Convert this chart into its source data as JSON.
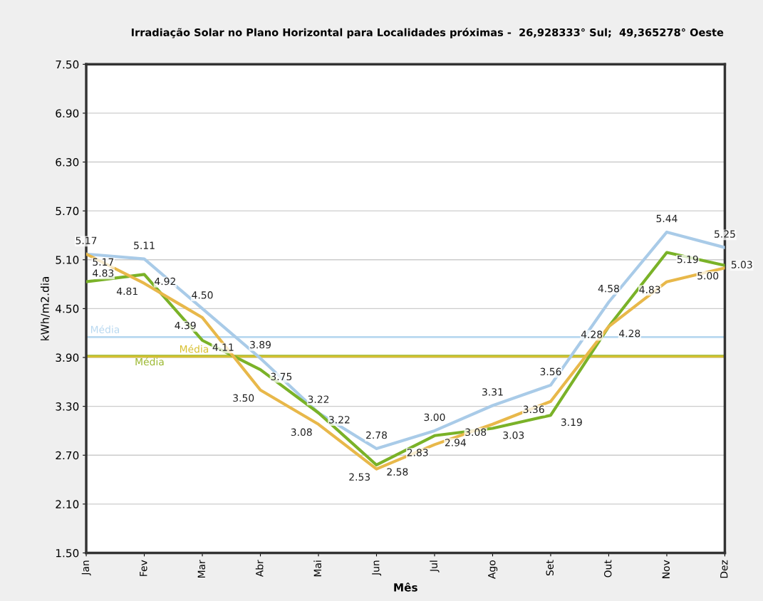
{
  "chart_data": {
    "type": "line",
    "title": "Irradiação Solar no Plano Horizontal para Localidades próximas -  26,928333° Sul;  49,365278° Oeste",
    "xlabel": "Mês",
    "ylabel": "kWh/m2.dia",
    "categories": [
      "Jan",
      "Fev",
      "Mar",
      "Abr",
      "Mai",
      "Jun",
      "Jul",
      "Ago",
      "Set",
      "Out",
      "Nov",
      "Dez"
    ],
    "series": [
      {
        "color": "#a9cbe8",
        "values": [
          5.17,
          5.11,
          4.5,
          3.89,
          3.22,
          2.78,
          3.0,
          3.31,
          3.56,
          4.58,
          5.44,
          5.25
        ],
        "value_labels": [
          "5.17",
          "5.11",
          "4.50",
          "3.89",
          "3.22",
          "2.78",
          "3.00",
          "3.31",
          "3.56",
          "4.58",
          "5.44",
          "5.25"
        ]
      },
      {
        "color": "#7ab228",
        "values": [
          4.83,
          4.92,
          4.11,
          3.75,
          3.22,
          2.58,
          2.94,
          3.03,
          3.19,
          4.28,
          5.19,
          5.03
        ],
        "value_labels": [
          "4.83",
          "4.92",
          "4.11",
          "3.75",
          "3.22",
          "2.58",
          "2.94",
          "3.03",
          "3.19",
          "4.28",
          "5.19",
          "5.03"
        ]
      },
      {
        "color": "#e8b84a",
        "values": [
          5.17,
          4.81,
          4.39,
          3.5,
          3.08,
          2.53,
          2.83,
          3.08,
          3.36,
          4.28,
          4.83,
          5.0
        ],
        "value_labels": [
          "5.17",
          "4.81",
          "4.39",
          "3.50",
          "3.08",
          "2.53",
          "2.83",
          "3.08",
          "3.36",
          "4.28",
          "4.83",
          "5.00"
        ]
      }
    ],
    "ylim": [
      1.5,
      7.5
    ],
    "yticks": [
      {
        "value": 1.5,
        "label": "1.50"
      },
      {
        "value": 2.1,
        "label": "2.10"
      },
      {
        "value": 2.7,
        "label": "2.70"
      },
      {
        "value": 3.3,
        "label": "3.30"
      },
      {
        "value": 3.9,
        "label": "3.90"
      },
      {
        "value": 4.5,
        "label": "4.50"
      },
      {
        "value": 5.1,
        "label": "5.10"
      },
      {
        "value": 5.7,
        "label": "5.70"
      },
      {
        "value": 6.3,
        "label": "6.30"
      },
      {
        "value": 6.9,
        "label": "6.90"
      },
      {
        "value": 7.5,
        "label": "7.50"
      }
    ],
    "ref_lines": [
      {
        "axis": "y",
        "value": 4.15,
        "label": "Média",
        "color": "#b8d8f0"
      },
      {
        "axis": "y",
        "value": 3.92,
        "label": "Média",
        "color": "#9bb830"
      },
      {
        "axis": "y",
        "value": 3.91,
        "label": "Média",
        "color": "#d8c030"
      }
    ],
    "grid": "y",
    "marker": "none",
    "line_style": "solid"
  }
}
